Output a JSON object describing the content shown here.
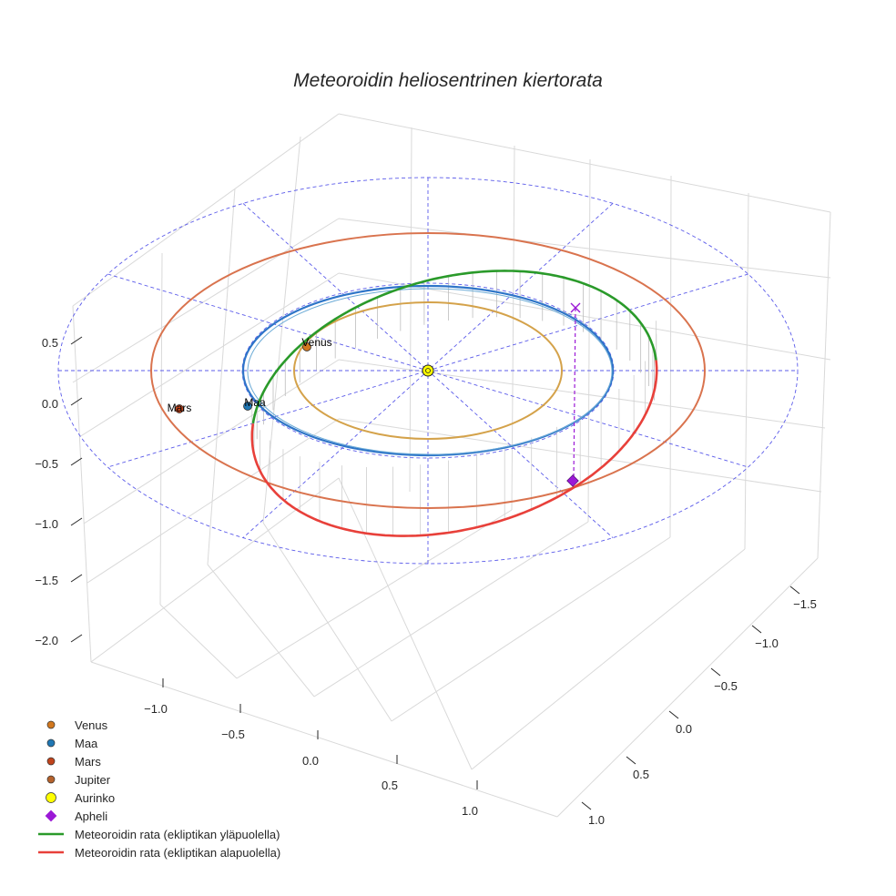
{
  "chart_data": {
    "type": "3d-line",
    "title": "Meteoroidin heliosentrinen kiertorata",
    "z_ticks": [
      "0.5",
      "0.0",
      "−0.5",
      "−1.0",
      "−1.5",
      "−2.0"
    ],
    "x_ticks": [
      "−1.0",
      "−0.5",
      "0.0",
      "0.5",
      "1.0"
    ],
    "y_ticks": [
      "−1.5",
      "−1.0",
      "−0.5",
      "0.0",
      "0.5",
      "1.0"
    ],
    "planet_orbits": [
      {
        "name": "Venus",
        "radius_au": 0.72,
        "color": "#d4a24a"
      },
      {
        "name": "Maa",
        "radius_au": 1.0,
        "color": "#2e75c8"
      },
      {
        "name": "Mars",
        "radius_au": 1.52,
        "color": "#d9734e"
      }
    ],
    "planet_positions": [
      {
        "name": "Venus",
        "label": "Venus",
        "color": "#d2781f"
      },
      {
        "name": "Maa",
        "label": "Maa",
        "color": "#1f77b4"
      },
      {
        "name": "Mars",
        "label": "Mars",
        "color": "#c1441c"
      }
    ],
    "series": [
      {
        "name": "Meteoroidin rata (ekliptikan yläpuolella)",
        "color": "#2a9a2a"
      },
      {
        "name": "Meteoroidin rata (ekliptikan alapuolella)",
        "color": "#e8403a"
      }
    ],
    "aphelion": {
      "label": "Apheli",
      "color": "#9b19d6"
    },
    "sun": {
      "label": "Aurinko",
      "color": "#ffff00"
    }
  },
  "legend": [
    {
      "label": "Venus",
      "kind": "dot",
      "color": "#d2781f"
    },
    {
      "label": "Maa",
      "kind": "dot",
      "color": "#1f77b4"
    },
    {
      "label": "Mars",
      "kind": "dot",
      "color": "#c1441c"
    },
    {
      "label": "Jupiter",
      "kind": "dot",
      "color": "#b5622c"
    },
    {
      "label": "Aurinko",
      "kind": "bigdot",
      "color": "#ffff00"
    },
    {
      "label": "Apheli",
      "kind": "diamond",
      "color": "#9b19d6"
    },
    {
      "label": "Meteoroidin rata (ekliptikan yläpuolella)",
      "kind": "line",
      "color": "#2a9a2a"
    },
    {
      "label": "Meteoroidin rata (ekliptikan alapuolella)",
      "kind": "line",
      "color": "#e8403a"
    }
  ]
}
